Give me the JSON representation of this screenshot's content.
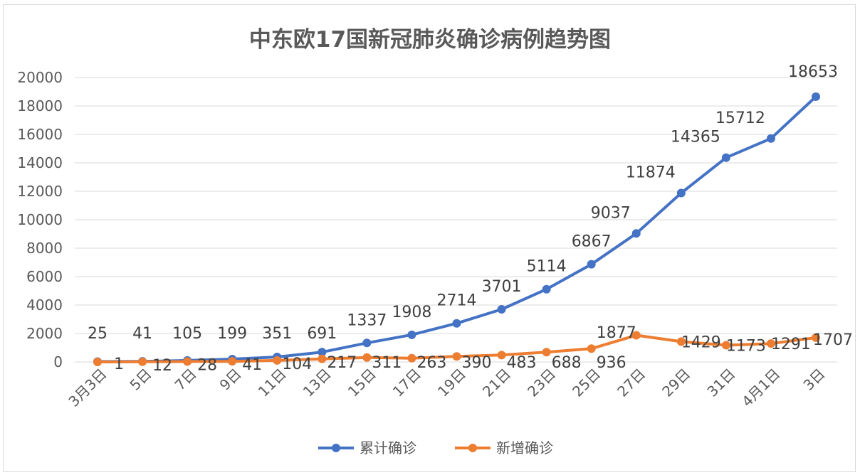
{
  "chart_data": {
    "type": "line",
    "title": "中东欧17国新冠肺炎确诊病例趋势图",
    "xlabel": "",
    "ylabel": "",
    "ylim": [
      0,
      20000
    ],
    "yticks": [
      0,
      2000,
      4000,
      6000,
      8000,
      10000,
      12000,
      14000,
      16000,
      18000,
      20000
    ],
    "categories": [
      "3月3日",
      "5日",
      "7日",
      "9日",
      "11日",
      "13日",
      "15日",
      "17日",
      "19日",
      "21日",
      "23日",
      "25日",
      "27日",
      "29日",
      "31日",
      "4月1日",
      "3日"
    ],
    "grid": true,
    "legend_position": "bottom",
    "series": [
      {
        "name": "累计确诊",
        "color": "#4472c4",
        "values": [
          25,
          41,
          105,
          199,
          351,
          691,
          1337,
          1908,
          2714,
          3701,
          5114,
          6867,
          9037,
          11874,
          14365,
          15712,
          18653
        ]
      },
      {
        "name": "新增确诊",
        "color": "#ed7d31",
        "values": [
          1,
          12,
          28,
          41,
          104,
          217,
          311,
          263,
          390,
          483,
          688,
          936,
          1877,
          1429,
          1173,
          1291,
          1707
        ]
      }
    ]
  }
}
